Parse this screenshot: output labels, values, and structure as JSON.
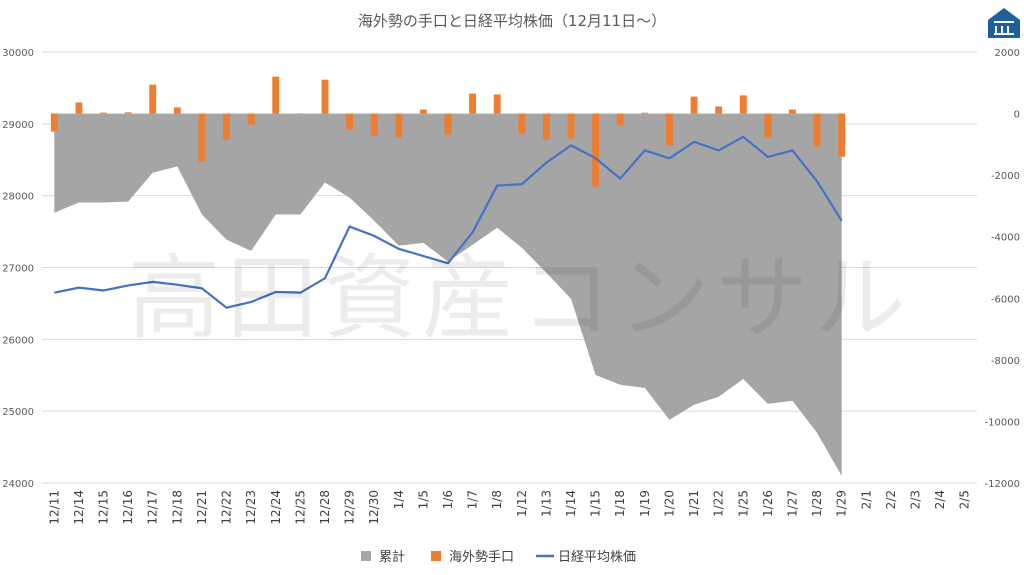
{
  "chart_data": {
    "type": "combo",
    "title": "海外勢の手口と日経平均株価（12月11日～）",
    "watermark": "高田資産コンサル",
    "categories": [
      "12/11",
      "12/14",
      "12/15",
      "12/16",
      "12/17",
      "12/18",
      "12/21",
      "12/22",
      "12/23",
      "12/24",
      "12/25",
      "12/28",
      "12/29",
      "12/30",
      "1/4",
      "1/5",
      "1/6",
      "1/7",
      "1/8",
      "1/12",
      "1/13",
      "1/14",
      "1/15",
      "1/18",
      "1/19",
      "1/20",
      "1/21",
      "1/22",
      "1/25",
      "1/26",
      "1/27",
      "1/28",
      "1/29",
      "2/1",
      "2/2",
      "2/3",
      "2/4",
      "2/5"
    ],
    "series": [
      {
        "name": "累計",
        "type": "area",
        "axis": "y2",
        "color": "#a5a5a5",
        "values": [
          -3220,
          -2890,
          -2890,
          -2860,
          -1920,
          -1720,
          -3280,
          -4100,
          -4460,
          -3280,
          -3280,
          -2240,
          -2730,
          -3480,
          -4290,
          -4200,
          -4810,
          -4260,
          -3710,
          -4360,
          -5170,
          -6020,
          -8490,
          -8810,
          -8910,
          -9950,
          -9460,
          -9200,
          -8620,
          -9430,
          -9330,
          -10370,
          -11770,
          null,
          null,
          null,
          null,
          null
        ]
      },
      {
        "name": "海外勢手口",
        "type": "bar",
        "axis": "y2",
        "color": "#ed7d31",
        "values": [
          -585,
          360,
          30,
          40,
          940,
          200,
          -1560,
          -850,
          -360,
          1200,
          10,
          1100,
          -520,
          -720,
          -780,
          130,
          -680,
          650,
          620,
          -650,
          -850,
          -810,
          -2370,
          -390,
          30,
          -1040,
          550,
          230,
          590,
          -780,
          130,
          -1070,
          -1400,
          null,
          null,
          null,
          null,
          null
        ]
      },
      {
        "name": "日経平均株価",
        "type": "line",
        "axis": "y",
        "color": "#4472c4",
        "values": [
          26650,
          26720,
          26680,
          26750,
          26800,
          26760,
          26710,
          26440,
          26520,
          26660,
          26650,
          26850,
          27570,
          27440,
          27260,
          27160,
          27060,
          27490,
          28140,
          28160,
          28460,
          28700,
          28520,
          28240,
          28630,
          28520,
          28750,
          28630,
          28820,
          28540,
          28630,
          28200,
          27650,
          null,
          null,
          null,
          null,
          null
        ]
      }
    ],
    "ylim": [
      24000,
      30000
    ],
    "yticks": [
      24000,
      25000,
      26000,
      27000,
      28000,
      29000,
      30000
    ],
    "y2lim": [
      -12000,
      2000
    ],
    "y2ticks": [
      -12000,
      -10000,
      -8000,
      -6000,
      -4000,
      -2000,
      0,
      2000
    ],
    "grid": true
  }
}
